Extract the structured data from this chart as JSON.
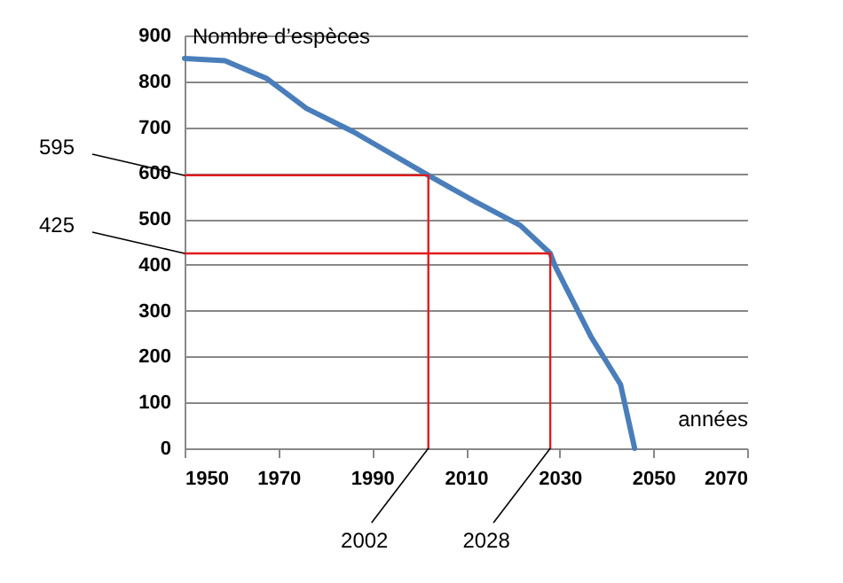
{
  "chart_data": {
    "type": "line",
    "xlabel": "années",
    "ylabel": "Nombre d’espèces",
    "series": [
      {
        "color": "#4a7ebb",
        "x": [
          1950,
          1958.6,
          1967.4,
          1976,
          1986,
          2002,
          2011.6,
          2021.6,
          2028,
          2029,
          2036.7,
          2043,
          2046
        ],
        "values": [
          850,
          845,
          807,
          741,
          690,
          595,
          540,
          486,
          425,
          398,
          243,
          139,
          0
        ]
      },
      {
        "color": "#e31a1c",
        "x": [
          1950,
          2002,
          2002
        ],
        "values": [
          595,
          595,
          0
        ]
      },
      {
        "color": "#e31a1c",
        "x": [
          1950,
          2028,
          2028
        ],
        "values": [
          425,
          425,
          0
        ]
      }
    ],
    "annotations": [
      {
        "text": "595",
        "x": 1950,
        "y": 595
      },
      {
        "text": "425",
        "x": 1950,
        "y": 425
      },
      {
        "text": "2002",
        "x": 2002,
        "y": 0
      },
      {
        "text": "2028",
        "x": 2028,
        "y": 0
      }
    ],
    "xlim": [
      1950,
      2070
    ],
    "xticks": [
      1950,
      1970,
      1990,
      2010,
      2030,
      2050,
      2070
    ],
    "ylim": [
      0,
      900
    ],
    "yticks": [
      0,
      100,
      200,
      300,
      400,
      500,
      600,
      700,
      800,
      900
    ],
    "grid": "y",
    "marker": "none",
    "line_style": "solid"
  }
}
